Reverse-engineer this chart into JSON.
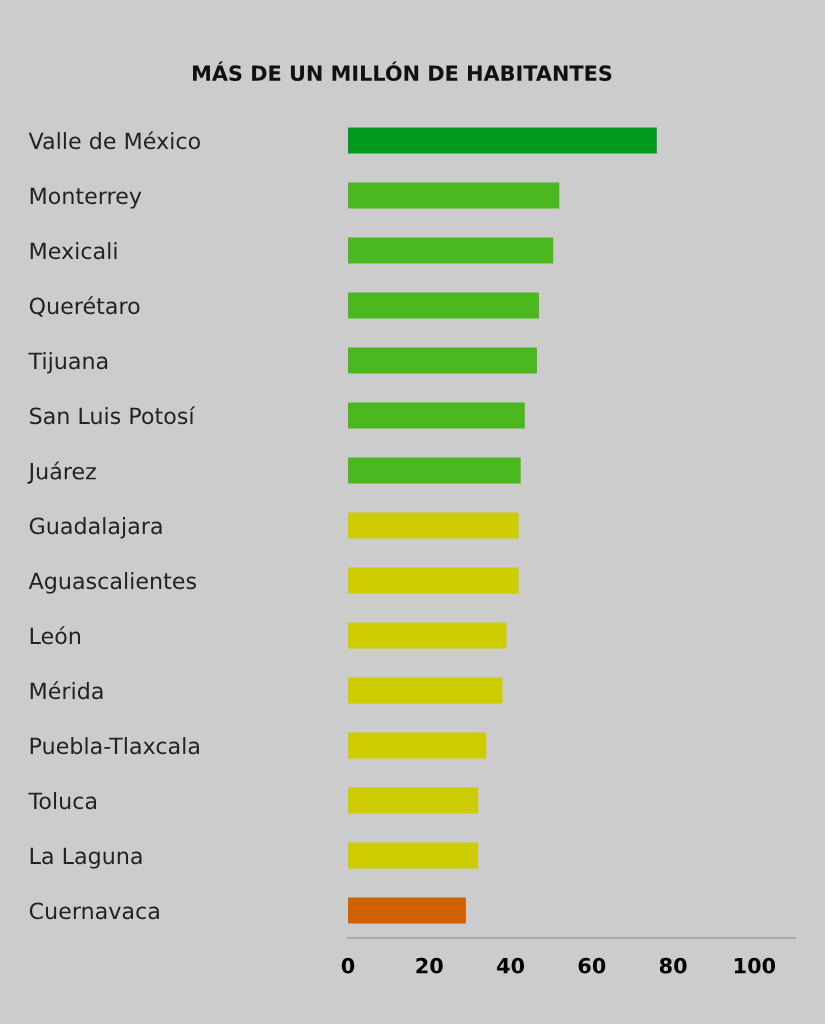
{
  "chart_data": {
    "type": "bar",
    "orientation": "horizontal",
    "title": "MÁS DE UN MILLÓN DE HABITANTES",
    "categories": [
      "Valle de México",
      "Monterrey",
      "Mexicali",
      "Querétaro",
      "Tijuana",
      "San Luis Potosí",
      "Juárez",
      "Guadalajara",
      "Aguascalientes",
      "León",
      "Mérida",
      "Puebla-Tlaxcala",
      "Toluca",
      "La Laguna",
      "Cuernavaca"
    ],
    "values": [
      76,
      52,
      50.5,
      47,
      46.5,
      43.5,
      42.5,
      42,
      42,
      39,
      38,
      34,
      32,
      32,
      29
    ],
    "colors": [
      "#009a1e",
      "#4cb820",
      "#4cb820",
      "#4cb820",
      "#4cb820",
      "#4cb820",
      "#4cb820",
      "#cccc00",
      "#cccc00",
      "#cccc00",
      "#cccc00",
      "#cccc00",
      "#cccc00",
      "#cccc00",
      "#d06000"
    ],
    "xlim": [
      0,
      110
    ],
    "xticks": [
      0,
      20,
      40,
      60,
      80,
      100
    ],
    "grid": false,
    "legend": false
  }
}
